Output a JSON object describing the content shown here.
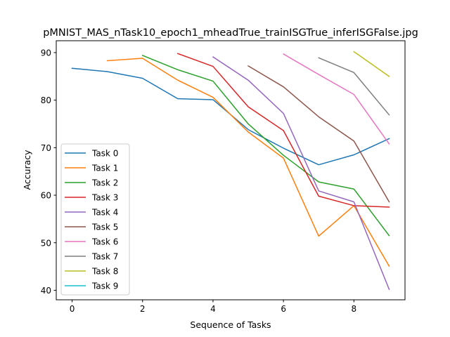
{
  "chart_data": {
    "type": "line",
    "title": "pMNIST_MAS_nTask10_epoch1_mheadTrue_trainISGTrue_inferISGFalse.jpg",
    "xlabel": "Sequence of Tasks",
    "ylabel": "Accuracy",
    "xlim": [
      -0.45,
      9.45
    ],
    "ylim": [
      38,
      92.5
    ],
    "xticks": [
      0,
      2,
      4,
      6,
      8
    ],
    "yticks": [
      40,
      50,
      60,
      70,
      80,
      90
    ],
    "grid": false,
    "legend_position": "lower-left",
    "series": [
      {
        "name": "Task 0",
        "color": "#1f77b4",
        "x": [
          0,
          1,
          2,
          3,
          4,
          5,
          6,
          7,
          8,
          9
        ],
        "y": [
          86.7,
          86.0,
          84.6,
          80.3,
          80.1,
          73.8,
          69.9,
          66.4,
          68.5,
          71.9
        ]
      },
      {
        "name": "Task 1",
        "color": "#ff7f0e",
        "x": [
          1,
          2,
          3,
          4,
          5,
          6,
          7,
          8,
          9
        ],
        "y": [
          88.3,
          88.8,
          84.2,
          80.6,
          73.3,
          67.8,
          51.4,
          57.8,
          45.1
        ]
      },
      {
        "name": "Task 2",
        "color": "#2ca02c",
        "x": [
          2,
          3,
          4,
          5,
          6,
          7,
          8,
          9
        ],
        "y": [
          89.4,
          86.4,
          84.0,
          75.0,
          68.4,
          62.8,
          61.3,
          51.5
        ]
      },
      {
        "name": "Task 3",
        "color": "#d62728",
        "x": [
          3,
          4,
          5,
          6,
          7,
          8,
          9
        ],
        "y": [
          89.8,
          87.1,
          78.6,
          73.6,
          59.8,
          57.8,
          57.5
        ]
      },
      {
        "name": "Task 4",
        "color": "#9467bd",
        "x": [
          4,
          5,
          6,
          7,
          8,
          9
        ],
        "y": [
          89.1,
          84.2,
          77.2,
          60.9,
          58.6,
          40.2
        ]
      },
      {
        "name": "Task 5",
        "color": "#8c564b",
        "x": [
          5,
          6,
          7,
          8,
          9
        ],
        "y": [
          87.2,
          82.8,
          76.5,
          71.4,
          58.6
        ]
      },
      {
        "name": "Task 6",
        "color": "#e377c2",
        "x": [
          6,
          7,
          8,
          9
        ],
        "y": [
          89.7,
          85.4,
          81.2,
          70.8
        ]
      },
      {
        "name": "Task 7",
        "color": "#7f7f7f",
        "x": [
          7,
          8,
          9
        ],
        "y": [
          88.9,
          85.8,
          76.9
        ]
      },
      {
        "name": "Task 8",
        "color": "#bcbd22",
        "x": [
          8,
          9
        ],
        "y": [
          90.2,
          85.0
        ]
      },
      {
        "name": "Task 9",
        "color": "#17becf",
        "x": [
          9
        ],
        "y": [
          71.3
        ]
      }
    ]
  }
}
